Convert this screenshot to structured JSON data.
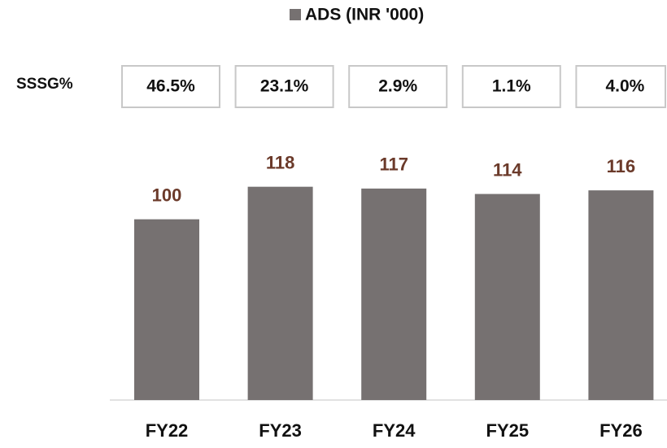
{
  "chart_data": {
    "type": "bar",
    "categories": [
      "FY22",
      "FY23",
      "FY24",
      "FY25",
      "FY26"
    ],
    "series": [
      {
        "name": "ADS (INR '000)",
        "color": "#767171",
        "values": [
          100,
          118,
          117,
          114,
          116
        ]
      }
    ],
    "ylim": [
      0,
      130
    ],
    "value_label_color": "#6b3a2a",
    "annotations": {
      "label": "SSSG%",
      "values": [
        "46.5%",
        "23.1%",
        "2.9%",
        "1.1%",
        "4.0%"
      ]
    }
  }
}
